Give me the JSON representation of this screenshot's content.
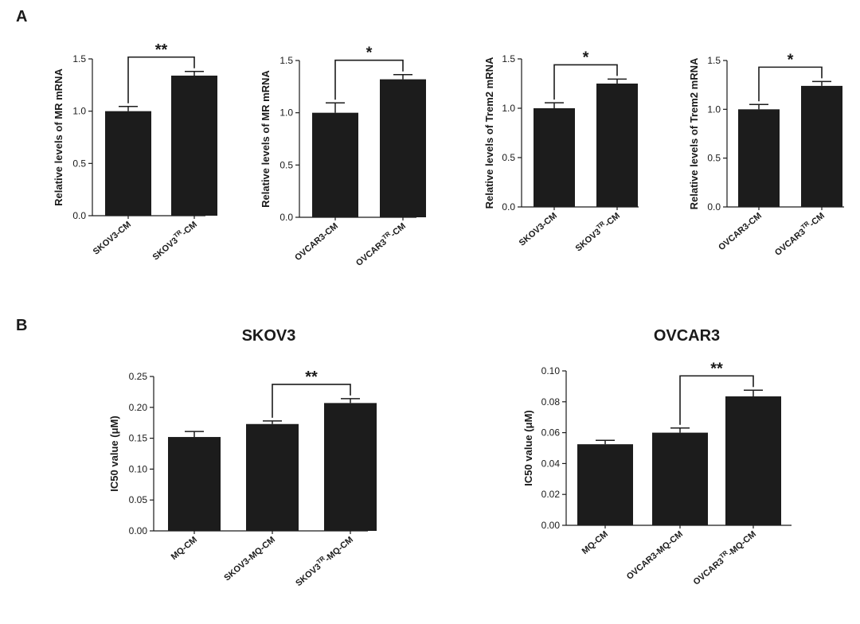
{
  "panels": {
    "a": "A",
    "b": "B"
  },
  "chart_data": [
    {
      "type": "bar",
      "ylabel": "Relative levels of MR mRNA",
      "categories": [
        [
          "SKOV3-CM"
        ],
        [
          "SKOV3",
          "TR",
          "-CM"
        ]
      ],
      "values": [
        1.0,
        1.34
      ],
      "errors": [
        0.045,
        0.04
      ],
      "ylim": [
        0,
        1.5
      ],
      "yticks": [
        "0.0",
        "0.5",
        "1.0",
        "1.5"
      ],
      "significance": [
        {
          "from": 0,
          "to": 1,
          "label": "**"
        }
      ]
    },
    {
      "type": "bar",
      "ylabel": "Relative levels of MR mRNA",
      "categories": [
        [
          "OVCAR3-CM"
        ],
        [
          "OVCAR3",
          "TR",
          "-CM"
        ]
      ],
      "values": [
        1.0,
        1.32
      ],
      "errors": [
        0.095,
        0.045
      ],
      "ylim": [
        0,
        1.5
      ],
      "yticks": [
        "0.0",
        "0.5",
        "1.0",
        "1.5"
      ],
      "significance": [
        {
          "from": 0,
          "to": 1,
          "label": "*"
        }
      ]
    },
    {
      "type": "bar",
      "ylabel": "Relative levels of Trem2 mRNA",
      "categories": [
        [
          "SKOV3-CM"
        ],
        [
          "SKOV3",
          "TR",
          "-CM"
        ]
      ],
      "values": [
        1.0,
        1.25
      ],
      "errors": [
        0.055,
        0.045
      ],
      "ylim": [
        0,
        1.5
      ],
      "yticks": [
        "0.0",
        "0.5",
        "1.0",
        "1.5"
      ],
      "significance": [
        {
          "from": 0,
          "to": 1,
          "label": "*"
        }
      ]
    },
    {
      "type": "bar",
      "ylabel": "Relative levels of Trem2 mRNA",
      "categories": [
        [
          "OVCAR3-CM"
        ],
        [
          "OVCAR3",
          "TR",
          "-CM"
        ]
      ],
      "values": [
        1.0,
        1.24
      ],
      "errors": [
        0.05,
        0.045
      ],
      "ylim": [
        0,
        1.5
      ],
      "yticks": [
        "0.0",
        "0.5",
        "1.0",
        "1.5"
      ],
      "significance": [
        {
          "from": 0,
          "to": 1,
          "label": "*"
        }
      ]
    },
    {
      "type": "bar",
      "title": "SKOV3",
      "ylabel": "IC50 value (μM)",
      "categories": [
        [
          "MQ-CM"
        ],
        [
          "SKOV3-MQ-CM"
        ],
        [
          "SKOV3",
          "TR",
          "-MQ-CM"
        ]
      ],
      "values": [
        0.152,
        0.173,
        0.207
      ],
      "errors": [
        0.009,
        0.005,
        0.007
      ],
      "ylim": [
        0,
        0.25
      ],
      "yticks": [
        "0.00",
        "0.05",
        "0.10",
        "0.15",
        "0.20",
        "0.25"
      ],
      "significance": [
        {
          "from": 1,
          "to": 2,
          "label": "**"
        }
      ]
    },
    {
      "type": "bar",
      "title": "OVCAR3",
      "ylabel": "IC50 value (μM)",
      "categories": [
        [
          "MQ-CM"
        ],
        [
          "OVCAR3-MQ-CM"
        ],
        [
          "OVCAR3",
          "TR",
          "-MQ-CM"
        ]
      ],
      "values": [
        0.0525,
        0.06,
        0.0835
      ],
      "errors": [
        0.0025,
        0.003,
        0.004
      ],
      "ylim": [
        0,
        0.1
      ],
      "yticks": [
        "0.00",
        "0.02",
        "0.04",
        "0.06",
        "0.08",
        "0.10"
      ],
      "significance": [
        {
          "from": 1,
          "to": 2,
          "label": "**"
        }
      ]
    }
  ]
}
